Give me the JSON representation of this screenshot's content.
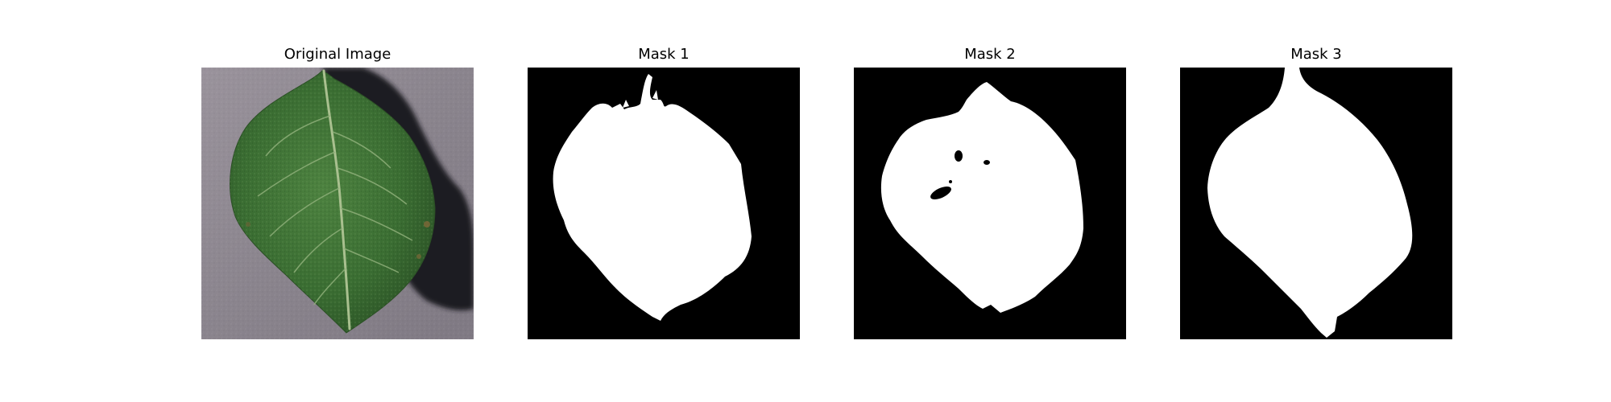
{
  "panels": [
    {
      "title": "Original Image"
    },
    {
      "title": "Mask 1"
    },
    {
      "title": "Mask 2"
    },
    {
      "title": "Mask 3"
    }
  ],
  "colors": {
    "background": "#ffffff",
    "mask_background": "#000000",
    "mask_foreground": "#ffffff",
    "ground": "#8d878f",
    "leaf_dark": "#2f5a2a",
    "leaf_light": "#4f8644",
    "vein": "#a9c08f",
    "shadow": "#1c1b22"
  }
}
